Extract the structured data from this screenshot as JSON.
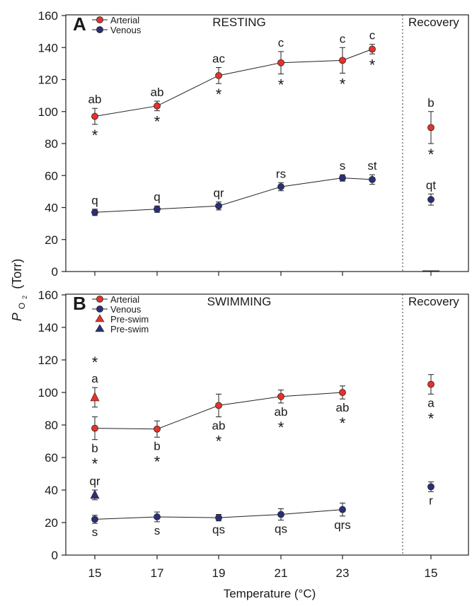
{
  "ylabel": {
    "main": "P",
    "sub": "O",
    "subsub": "2",
    "unit": "(Torr)"
  },
  "xlabel": "Temperature (°C)",
  "colors": {
    "arterial": "#e8312a",
    "venous": "#2b2f7a",
    "line": "#222222"
  },
  "chart_data": [
    {
      "type": "line",
      "panel": "A",
      "title": "RESTING",
      "recovery_label": "Recovery",
      "legend": [
        "Arterial",
        "Venous"
      ],
      "legend_placement": "top-left",
      "ylim": [
        0,
        160
      ],
      "yticks": [
        "0",
        "20",
        "40",
        "60",
        "80",
        "100",
        "120",
        "140",
        "160"
      ],
      "xticks": [
        "15",
        "17",
        "19",
        "21",
        "23"
      ],
      "recovery_xtick": "15",
      "series": [
        {
          "name": "Arterial",
          "x": [
            15,
            17,
            19,
            21,
            23,
            24
          ],
          "values": [
            97,
            103.5,
            122.5,
            130.5,
            132,
            139
          ],
          "err": [
            5,
            3,
            5,
            7,
            8,
            3
          ],
          "labels": [
            "ab",
            "ab",
            "ac",
            "c",
            "c",
            "c"
          ],
          "stars": [
            true,
            true,
            true,
            true,
            true,
            true
          ],
          "recovery": {
            "value": 90,
            "err": 10,
            "label": "b",
            "star": true
          }
        },
        {
          "name": "Venous",
          "x": [
            15,
            17,
            19,
            21,
            23,
            24
          ],
          "values": [
            37,
            39,
            41,
            53,
            58.5,
            57.5
          ],
          "err": [
            2,
            2,
            2.5,
            2.5,
            2,
            3
          ],
          "labels": [
            "q",
            "q",
            "qr",
            "rs",
            "s",
            "st"
          ],
          "stars": [
            false,
            false,
            false,
            false,
            false,
            false
          ],
          "recovery": {
            "value": 45,
            "err": 3.5,
            "label": "qt",
            "star": false
          }
        }
      ]
    },
    {
      "type": "line",
      "panel": "B",
      "title": "SWIMMING",
      "recovery_label": "Recovery",
      "legend": [
        "Arterial",
        "Venous",
        "Pre-swim",
        "Pre-swim"
      ],
      "legend_placement": "top-left",
      "ylim": [
        0,
        160
      ],
      "yticks": [
        "0",
        "20",
        "40",
        "60",
        "80",
        "100",
        "120",
        "140",
        "160"
      ],
      "xticks": [
        "15",
        "17",
        "19",
        "21",
        "23"
      ],
      "recovery_xtick": "15",
      "series": [
        {
          "name": "Arterial",
          "x": [
            15,
            17,
            19,
            21,
            23
          ],
          "values": [
            78,
            77.5,
            92,
            97.5,
            100
          ],
          "err": [
            7,
            5,
            7,
            4,
            4
          ],
          "labels": [
            "b",
            "b",
            "ab",
            "ab",
            "ab"
          ],
          "stars": [
            true,
            true,
            true,
            true,
            true
          ],
          "recovery": {
            "value": 105,
            "err": 6,
            "label": "a",
            "star": true
          }
        },
        {
          "name": "Venous",
          "x": [
            15,
            17,
            19,
            21,
            23
          ],
          "values": [
            22,
            23.5,
            23,
            25,
            28
          ],
          "err": [
            2.5,
            3,
            2,
            3.5,
            4
          ],
          "labels": [
            "s",
            "s",
            "qs",
            "qs",
            "qrs"
          ],
          "stars": [
            false,
            false,
            false,
            false,
            false
          ],
          "recovery": {
            "value": 42,
            "err": 3,
            "label": "r",
            "star": false
          }
        },
        {
          "name": "Pre-swim",
          "x": [
            15
          ],
          "values": [
            97
          ],
          "err": [
            6
          ],
          "labels": [
            "a"
          ],
          "stars": [
            true
          ]
        },
        {
          "name": "Pre-swim",
          "x": [
            15
          ],
          "values": [
            37
          ],
          "err": [
            3
          ],
          "labels": [
            "qr"
          ],
          "stars": [
            false
          ]
        }
      ]
    }
  ]
}
